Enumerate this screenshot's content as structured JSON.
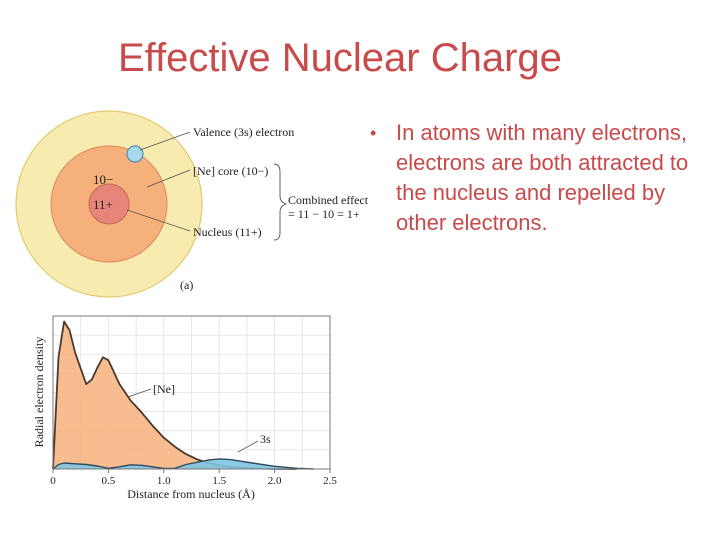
{
  "slide": {
    "title": "Effective Nuclear Charge",
    "bullet": "In atoms with many electrons, electrons are both attracted to the nucleus and repelled by other electrons."
  },
  "atom_diagram": {
    "valence_label": "Valence (3s) electron",
    "core_label": "[Ne] core (10−)",
    "nucleus_label": "Nucleus (11+)",
    "combined_line1": "Combined effect",
    "combined_line2": "= 11 − 10 = 1+",
    "core_charge": "10−",
    "nucleus_charge": "11+",
    "panel_label": "(a)",
    "colors": {
      "outer": "#f7ebb0",
      "core": "#f6b07b",
      "nucleus": "#e8857a",
      "electron": "#a7d8ec"
    }
  },
  "chart_data": {
    "type": "area",
    "xlabel": "Distance from nucleus (Å)",
    "ylabel": "Radial electron density",
    "xlim": [
      0,
      2.5
    ],
    "x_ticks": [
      "0",
      "0.5",
      "1.0",
      "1.5",
      "2.0",
      "2.5"
    ],
    "grid": true,
    "series": [
      {
        "name": "[Ne]",
        "color": "#f6b07b",
        "x": [
          0,
          0.05,
          0.1,
          0.15,
          0.2,
          0.3,
          0.35,
          0.4,
          0.45,
          0.5,
          0.55,
          0.6,
          0.7,
          0.8,
          0.9,
          1.0,
          1.1,
          1.2,
          1.3,
          1.4,
          1.5,
          1.6,
          1.7,
          1.8,
          1.9,
          2.0,
          2.2
        ],
        "y": [
          0,
          0.75,
          0.99,
          0.93,
          0.78,
          0.57,
          0.6,
          0.68,
          0.75,
          0.73,
          0.65,
          0.57,
          0.46,
          0.38,
          0.29,
          0.21,
          0.15,
          0.1,
          0.065,
          0.04,
          0.025,
          0.015,
          0.01,
          0.006,
          0.003,
          0.001,
          0
        ]
      },
      {
        "name": "3s",
        "color": "#7fc4e3",
        "x": [
          0,
          0.05,
          0.1,
          0.2,
          0.3,
          0.4,
          0.5,
          0.6,
          0.7,
          0.8,
          0.9,
          1.0,
          1.1,
          1.2,
          1.4,
          1.5,
          1.6,
          1.8,
          2.0,
          2.2,
          2.35
        ],
        "y": [
          0,
          0.03,
          0.04,
          0.035,
          0.03,
          0.02,
          0.005,
          0.015,
          0.028,
          0.025,
          0.015,
          0.004,
          0.005,
          0.03,
          0.06,
          0.068,
          0.063,
          0.04,
          0.018,
          0.005,
          0
        ]
      }
    ],
    "annotations": [
      "[Ne]",
      "3s"
    ]
  }
}
